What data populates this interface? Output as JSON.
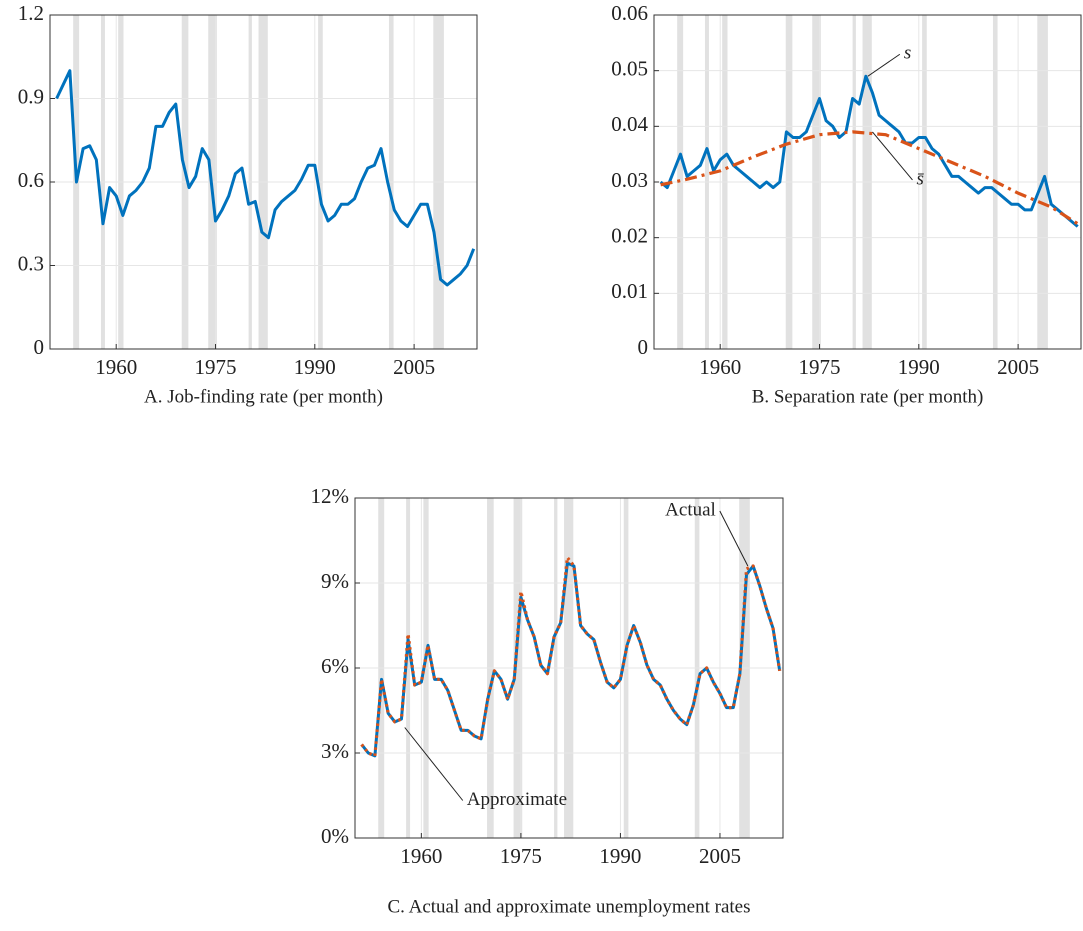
{
  "chart_data": [
    {
      "type": "line",
      "title": "A. Job-finding rate (per month)",
      "xlim": [
        1950,
        2014.5
      ],
      "xticks": [
        1960,
        1975,
        1990,
        2005
      ],
      "ylim": [
        0,
        1.2
      ],
      "yticks": [
        0,
        0.3,
        0.6,
        0.9,
        1.2
      ],
      "grid": true,
      "recessions": [
        [
          1953.5,
          1954.4
        ],
        [
          1957.7,
          1958.3
        ],
        [
          1960.3,
          1961.1
        ],
        [
          1969.9,
          1970.9
        ],
        [
          1973.9,
          1975.2
        ],
        [
          1980.0,
          1980.5
        ],
        [
          1981.5,
          1982.9
        ],
        [
          1990.5,
          1991.2
        ],
        [
          2001.2,
          2001.9
        ],
        [
          2007.9,
          2009.5
        ]
      ],
      "x": [
        1951,
        1952,
        1953,
        1954,
        1955,
        1956,
        1957,
        1958,
        1959,
        1960,
        1961,
        1962,
        1963,
        1964,
        1965,
        1966,
        1967,
        1968,
        1969,
        1970,
        1971,
        1972,
        1973,
        1974,
        1975,
        1976,
        1977,
        1978,
        1979,
        1980,
        1981,
        1982,
        1983,
        1984,
        1985,
        1986,
        1987,
        1988,
        1989,
        1990,
        1991,
        1992,
        1993,
        1994,
        1995,
        1996,
        1997,
        1998,
        1999,
        2000,
        2001,
        2002,
        2003,
        2004,
        2005,
        2006,
        2007,
        2008,
        2009,
        2010,
        2011,
        2012,
        2013,
        2014
      ],
      "series": [
        {
          "color": "#0072bd",
          "style": "solid",
          "values": [
            0.9,
            0.95,
            1.0,
            0.6,
            0.72,
            0.73,
            0.68,
            0.45,
            0.58,
            0.55,
            0.48,
            0.55,
            0.57,
            0.6,
            0.65,
            0.8,
            0.8,
            0.85,
            0.88,
            0.68,
            0.58,
            0.62,
            0.72,
            0.68,
            0.46,
            0.5,
            0.55,
            0.63,
            0.65,
            0.52,
            0.53,
            0.42,
            0.4,
            0.5,
            0.53,
            0.55,
            0.57,
            0.61,
            0.66,
            0.66,
            0.52,
            0.46,
            0.48,
            0.52,
            0.52,
            0.54,
            0.6,
            0.65,
            0.66,
            0.72,
            0.6,
            0.5,
            0.46,
            0.44,
            0.48,
            0.52,
            0.52,
            0.42,
            0.25,
            0.23,
            0.25,
            0.27,
            0.3,
            0.36
          ]
        }
      ],
      "annotations": []
    },
    {
      "type": "line",
      "title": "B. Separation rate (per month)",
      "xlim": [
        1950,
        2014.5
      ],
      "xticks": [
        1960,
        1975,
        1990,
        2005
      ],
      "ylim": [
        0,
        0.06
      ],
      "yticks": [
        0,
        0.01,
        0.02,
        0.03,
        0.04,
        0.05,
        0.06
      ],
      "grid": true,
      "recessions": [
        [
          1953.5,
          1954.4
        ],
        [
          1957.7,
          1958.3
        ],
        [
          1960.3,
          1961.1
        ],
        [
          1969.9,
          1970.9
        ],
        [
          1973.9,
          1975.2
        ],
        [
          1980.0,
          1980.5
        ],
        [
          1981.5,
          1982.9
        ],
        [
          1990.5,
          1991.2
        ],
        [
          2001.2,
          2001.9
        ],
        [
          2007.9,
          2009.5
        ]
      ],
      "x": [
        1951,
        1952,
        1953,
        1954,
        1955,
        1956,
        1957,
        1958,
        1959,
        1960,
        1961,
        1962,
        1963,
        1964,
        1965,
        1966,
        1967,
        1968,
        1969,
        1970,
        1971,
        1972,
        1973,
        1974,
        1975,
        1976,
        1977,
        1978,
        1979,
        1980,
        1981,
        1982,
        1983,
        1984,
        1985,
        1986,
        1987,
        1988,
        1989,
        1990,
        1991,
        1992,
        1993,
        1994,
        1995,
        1996,
        1997,
        1998,
        1999,
        2000,
        2001,
        2002,
        2003,
        2004,
        2005,
        2006,
        2007,
        2008,
        2009,
        2010,
        2011,
        2012,
        2013,
        2014
      ],
      "series": [
        {
          "color": "#0072bd",
          "style": "solid",
          "values": [
            0.03,
            0.029,
            0.032,
            0.035,
            0.031,
            0.032,
            0.033,
            0.036,
            0.032,
            0.034,
            0.035,
            0.033,
            0.032,
            0.031,
            0.03,
            0.029,
            0.03,
            0.029,
            0.03,
            0.039,
            0.038,
            0.038,
            0.039,
            0.042,
            0.045,
            0.041,
            0.04,
            0.038,
            0.039,
            0.045,
            0.044,
            0.049,
            0.046,
            0.042,
            0.041,
            0.04,
            0.039,
            0.037,
            0.037,
            0.038,
            0.038,
            0.036,
            0.035,
            0.033,
            0.031,
            0.031,
            0.03,
            0.029,
            0.028,
            0.029,
            0.029,
            0.028,
            0.027,
            0.026,
            0.026,
            0.025,
            0.025,
            0.028,
            0.031,
            0.026,
            0.025,
            0.024,
            0.023,
            0.022
          ]
        },
        {
          "color": "#d95319",
          "style": "dashdot",
          "x": [
            1951,
            1955,
            1960,
            1965,
            1970,
            1975,
            1980,
            1985,
            1990,
            1995,
            2000,
            2005,
            2010,
            2014
          ],
          "values": [
            0.0295,
            0.0305,
            0.032,
            0.0345,
            0.0368,
            0.0385,
            0.039,
            0.0385,
            0.036,
            0.0335,
            0.031,
            0.028,
            0.0255,
            0.0225
          ]
        }
      ],
      "annotations": [
        {
          "text": "s",
          "x": 1982.3,
          "y": 0.049
        },
        {
          "text": "s̄",
          "x": 1983,
          "y": 0.039
        }
      ]
    },
    {
      "type": "line",
      "title": "C. Actual and approximate unemployment rates",
      "xlim": [
        1950,
        2014.5
      ],
      "xticks": [
        1960,
        1975,
        1990,
        2005
      ],
      "ylim": [
        0,
        12
      ],
      "yticks": [
        {
          "value": 0,
          "label": "0%"
        },
        {
          "value": 3,
          "label": "3%"
        },
        {
          "value": 6,
          "label": "6%"
        },
        {
          "value": 9,
          "label": "9%"
        },
        {
          "value": 12,
          "label": "12%"
        }
      ],
      "grid": true,
      "recessions": [
        [
          1953.5,
          1954.4
        ],
        [
          1957.7,
          1958.3
        ],
        [
          1960.3,
          1961.1
        ],
        [
          1969.9,
          1970.9
        ],
        [
          1973.9,
          1975.2
        ],
        [
          1980.0,
          1980.5
        ],
        [
          1981.5,
          1982.9
        ],
        [
          1990.5,
          1991.2
        ],
        [
          2001.2,
          2001.9
        ],
        [
          2007.9,
          2009.5
        ]
      ],
      "x": [
        1951,
        1952,
        1953,
        1954,
        1955,
        1956,
        1957,
        1958,
        1959,
        1960,
        1961,
        1962,
        1963,
        1964,
        1965,
        1966,
        1967,
        1968,
        1969,
        1970,
        1971,
        1972,
        1973,
        1974,
        1975,
        1976,
        1977,
        1978,
        1979,
        1980,
        1981,
        1982,
        1983,
        1984,
        1985,
        1986,
        1987,
        1988,
        1989,
        1990,
        1991,
        1992,
        1993,
        1994,
        1995,
        1996,
        1997,
        1998,
        1999,
        2000,
        2001,
        2002,
        2003,
        2004,
        2005,
        2006,
        2007,
        2008,
        2009,
        2010,
        2011,
        2012,
        2013,
        2014
      ],
      "series": [
        {
          "name": "Actual",
          "color": "#0072bd",
          "style": "solid",
          "values": [
            3.3,
            3.0,
            2.9,
            5.6,
            4.4,
            4.1,
            4.2,
            7.0,
            5.4,
            5.5,
            6.8,
            5.6,
            5.6,
            5.2,
            4.5,
            3.8,
            3.8,
            3.6,
            3.5,
            4.9,
            5.9,
            5.6,
            4.9,
            5.6,
            8.5,
            7.7,
            7.1,
            6.1,
            5.8,
            7.1,
            7.6,
            9.7,
            9.6,
            7.5,
            7.2,
            7.0,
            6.2,
            5.5,
            5.3,
            5.6,
            6.8,
            7.5,
            6.9,
            6.1,
            5.6,
            5.4,
            4.9,
            4.5,
            4.2,
            4.0,
            4.7,
            5.8,
            6.0,
            5.5,
            5.1,
            4.6,
            4.6,
            5.8,
            9.3,
            9.6,
            8.9,
            8.1,
            7.4,
            5.9
          ]
        },
        {
          "name": "Approximate",
          "color": "#d95319",
          "style": "dotted",
          "values": [
            3.3,
            3.0,
            2.9,
            5.6,
            4.4,
            4.1,
            4.2,
            7.2,
            5.4,
            5.5,
            6.8,
            5.6,
            5.6,
            5.2,
            4.5,
            3.8,
            3.8,
            3.6,
            3.5,
            4.9,
            5.9,
            5.6,
            4.9,
            5.6,
            8.7,
            7.7,
            7.1,
            6.1,
            5.8,
            7.1,
            7.6,
            9.9,
            9.6,
            7.5,
            7.2,
            7.0,
            6.2,
            5.5,
            5.3,
            5.6,
            6.8,
            7.5,
            6.9,
            6.1,
            5.6,
            5.4,
            4.9,
            4.5,
            4.2,
            4.0,
            4.7,
            5.8,
            6.0,
            5.5,
            5.1,
            4.6,
            4.6,
            5.8,
            9.5,
            9.6,
            8.9,
            8.1,
            7.4,
            5.9
          ]
        }
      ],
      "annotations": [
        {
          "text": "Actual",
          "x": 2009.2,
          "y": 9.6
        },
        {
          "text": "Approximate",
          "x": 1957.5,
          "y": 3.9
        }
      ]
    }
  ]
}
